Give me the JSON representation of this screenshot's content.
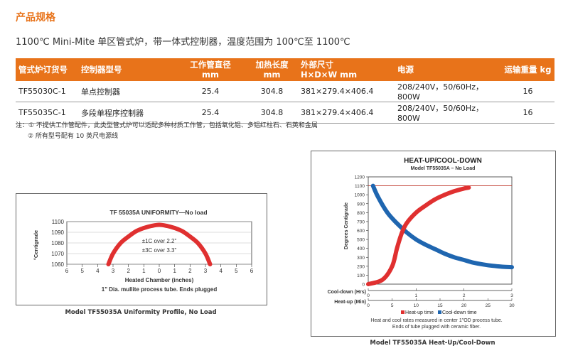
{
  "section_title": "产品规格",
  "subtitle": "1100℃ Mini-Mite 单区管式炉，带一体式控制器，温度范围为 100℃至 1100℃",
  "table": {
    "headers": {
      "order_no": "管式炉订货号",
      "controller": "控制器型号",
      "tube_dia": "工作管直径",
      "tube_dia_unit": "mm",
      "heat_len": "加热长度",
      "heat_len_unit": "mm",
      "dims": "外部尺寸",
      "dims_unit": "H×D×W mm",
      "power": "电源",
      "weight": "运输重量 kg"
    },
    "rows": [
      {
        "order_no": "TF55030C-1",
        "controller": "单点控制器",
        "tube_dia": "25.4",
        "heat_len": "304.8",
        "dims": "381×279.4×406.4",
        "power": "208/240V，50/60Hz，800W",
        "weight": "16"
      },
      {
        "order_no": "TF55035C-1",
        "controller": "多段单程序控制器",
        "tube_dia": "25.4",
        "heat_len": "304.8",
        "dims": "381×279.4×406.4",
        "power": "208/240V，50/60Hz，800W",
        "weight": "16"
      }
    ]
  },
  "notes": {
    "line1": "注：① 不提供工作管配件，此类型管式炉可以适配多种材质工作管，包括氧化铝、多铝红柱石、石英和金属",
    "line2": "② 所有型号配有 10 英尺电源线"
  },
  "chart_data": [
    {
      "type": "area",
      "title": "TF 55035A UNIFORMITY—No load",
      "ylabel": "°Centigrade",
      "xlabel": "Heated Chamber (inches)",
      "xlabel2": "1\" Dia. mullite process tube. Ends plugged",
      "ylim": [
        1060,
        1100
      ],
      "yticks": [
        "1100",
        "1090",
        "1080",
        "1070",
        "1060"
      ],
      "xticks": [
        "6",
        "5",
        "4",
        "3",
        "2",
        "1",
        "0",
        "1",
        "2",
        "3",
        "4",
        "5",
        "6"
      ],
      "annotations": [
        "±1C over 2.2\"",
        "±3C over 3.3\""
      ],
      "color": "#e03030",
      "x": [
        -3.3,
        -3.0,
        -2.5,
        -2.0,
        -1.5,
        -1.0,
        -0.5,
        0,
        0.5,
        1.0,
        1.5,
        2.0,
        2.5,
        3.0,
        3.3
      ],
      "y": [
        1060,
        1070,
        1080,
        1086,
        1091,
        1094,
        1096,
        1097,
        1096,
        1094,
        1091,
        1086,
        1080,
        1070,
        1060
      ],
      "caption": "Model TF55035A Uniformity Profile, No Load"
    },
    {
      "type": "line",
      "title": "HEAT-UP/COOL-DOWN",
      "subtitle": "Model TF55035A – No Load",
      "ylabel": "Degrees Centigrade",
      "ylim": [
        0,
        1200
      ],
      "yticks": [
        "1200",
        "1100",
        "1000",
        "900",
        "800",
        "700",
        "600",
        "500",
        "400",
        "300",
        "200",
        "100",
        "0"
      ],
      "reference_line": 1100,
      "axes": [
        {
          "label": "Cool-down (Hrs)",
          "ticks": [
            "0",
            "1",
            "2",
            "3"
          ],
          "range": [
            0,
            3
          ]
        },
        {
          "label": "Heat-up (Min)",
          "ticks": [
            "0",
            "5",
            "10",
            "15",
            "20",
            "25",
            "30"
          ],
          "range": [
            0,
            30
          ]
        }
      ],
      "series": [
        {
          "name": "Heat-up time",
          "color": "#e03030",
          "x_units": "min",
          "x": [
            0,
            3,
            5,
            6,
            7,
            8,
            10,
            12,
            14,
            16,
            18,
            20,
            21
          ],
          "y": [
            0,
            50,
            200,
            400,
            570,
            680,
            800,
            880,
            950,
            1000,
            1040,
            1070,
            1080
          ]
        },
        {
          "name": "Cool-down time",
          "color": "#1f66b0",
          "x_units": "hrs",
          "x": [
            0.1,
            0.2,
            0.4,
            0.6,
            0.8,
            1.0,
            1.2,
            1.4,
            1.6,
            1.8,
            2.0,
            2.2,
            2.4,
            2.6,
            2.8,
            3.0
          ],
          "y": [
            1100,
            980,
            800,
            680,
            580,
            500,
            440,
            390,
            340,
            300,
            270,
            240,
            220,
            205,
            195,
            190
          ]
        }
      ],
      "notes": [
        "Heat and cool rates measured in center 1\"OD process tube.",
        "Ends of tube plugged with ceramic fiber."
      ],
      "caption": "Model TF55035A Heat-Up/Cool-Down"
    }
  ]
}
